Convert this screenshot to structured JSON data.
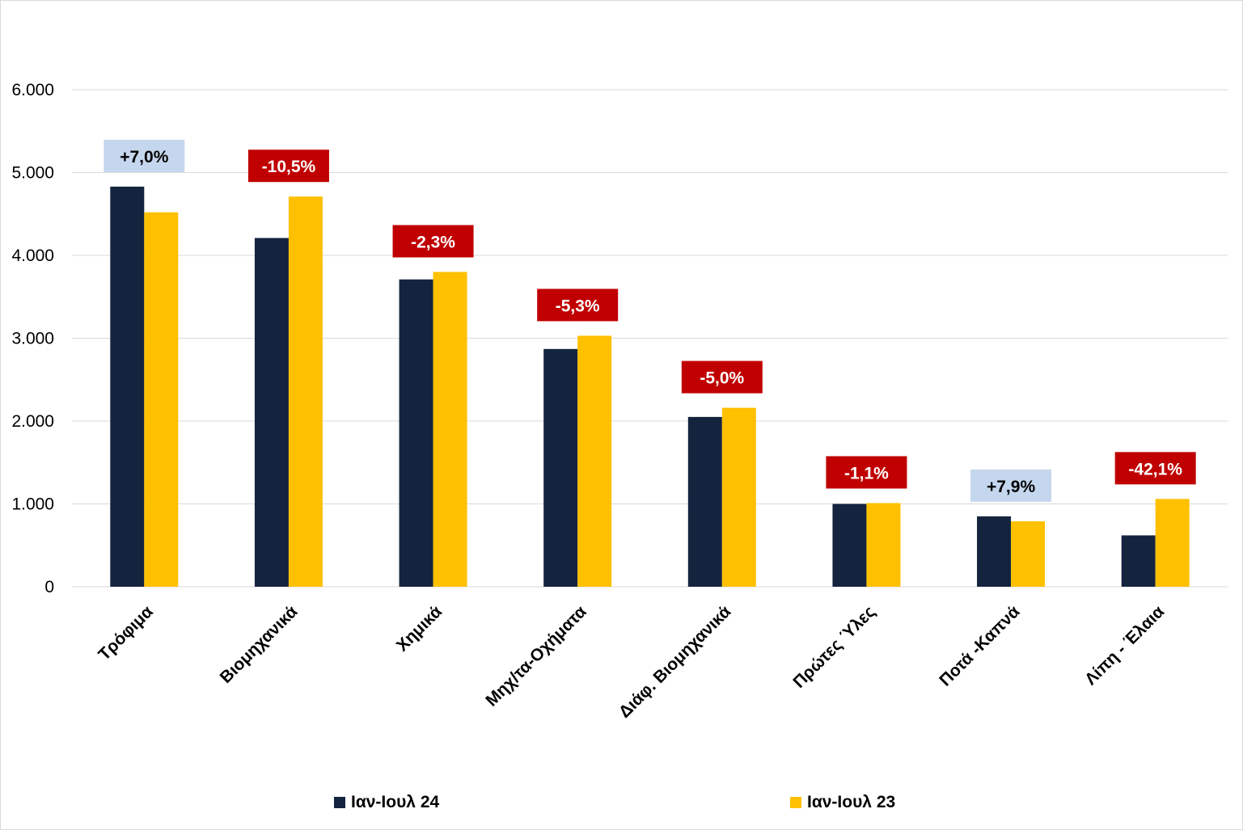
{
  "colors": {
    "series1": "#14243f",
    "series2": "#ffc000",
    "gridline": "#d9d9d9",
    "positive_bg": "#c5d7ee",
    "positive_fg": "#000000",
    "negative_bg": "#c00000",
    "negative_fg": "#ffffff"
  },
  "chart_data": {
    "type": "bar",
    "title": "",
    "xlabel": "",
    "ylabel": "",
    "ylim": [
      0,
      6000
    ],
    "yticks": [
      0,
      1000,
      2000,
      3000,
      4000,
      5000,
      6000
    ],
    "ytick_labels": [
      "0",
      "1.000",
      "2.000",
      "3.000",
      "4.000",
      "5.000",
      "6.000"
    ],
    "grid": true,
    "legend_position": "bottom",
    "categories": [
      "Τρόφιμα",
      "Βιομηχανικά",
      "Χημικά",
      "Μηχ/τα-Οχήματα",
      "Διάφ. Βιομηχανικά",
      "Πρώτες Ύλες",
      "Ποτά -Καπνά",
      "Λίπη - Έλαια"
    ],
    "series": [
      {
        "name": "Ιαν-Ιουλ 24",
        "values": [
          4830,
          4210,
          3710,
          2870,
          2050,
          1000,
          850,
          620
        ]
      },
      {
        "name": "Ιαν-Ιουλ 23",
        "values": [
          4520,
          4710,
          3800,
          3030,
          2160,
          1010,
          790,
          1060
        ]
      }
    ],
    "annotations": [
      {
        "text": "+7,0%",
        "sign": "positive"
      },
      {
        "text": "-10,5%",
        "sign": "negative"
      },
      {
        "text": "-2,3%",
        "sign": "negative"
      },
      {
        "text": "-5,3%",
        "sign": "negative"
      },
      {
        "text": "-5,0%",
        "sign": "negative"
      },
      {
        "text": "-1,1%",
        "sign": "negative"
      },
      {
        "text": "+7,9%",
        "sign": "positive"
      },
      {
        "text": "-42,1%",
        "sign": "negative"
      }
    ]
  }
}
